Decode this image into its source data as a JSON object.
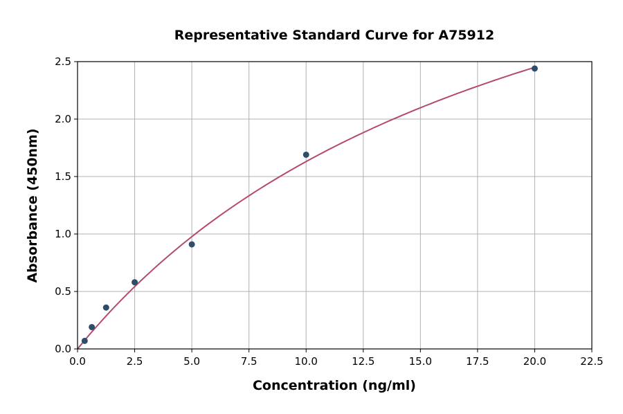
{
  "chart_data": {
    "type": "scatter",
    "title": "Representative Standard Curve for A75912",
    "xlabel": "Concentration (ng/ml)",
    "ylabel": "Absorbance (450nm)",
    "xlim": [
      0,
      22.5
    ],
    "ylim": [
      0,
      2.5
    ],
    "xticks": [
      "0.0",
      "2.5",
      "5.0",
      "7.5",
      "10.0",
      "12.5",
      "15.0",
      "17.5",
      "20.0",
      "22.5"
    ],
    "yticks": [
      "0.0",
      "0.5",
      "1.0",
      "1.5",
      "2.0",
      "2.5"
    ],
    "grid": true,
    "series": [
      {
        "type": "scatter",
        "x": [
          0.3125,
          0.625,
          1.25,
          2.5,
          5,
          10,
          20
        ],
        "y": [
          0.07,
          0.19,
          0.36,
          0.58,
          0.91,
          1.69,
          2.44
        ],
        "color": "#2e4d6b"
      },
      {
        "type": "line",
        "fit": "curve",
        "color": "#b5496b"
      }
    ]
  }
}
